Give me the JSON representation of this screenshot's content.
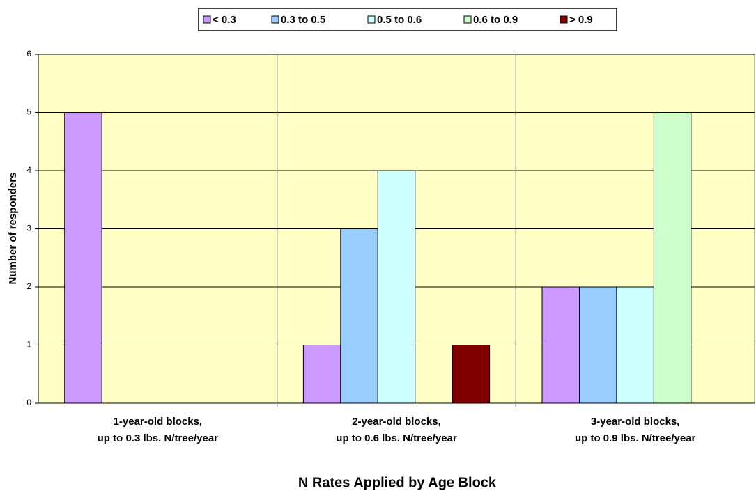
{
  "chart_data": {
    "type": "bar",
    "title": "N Rates Applied by Age Block",
    "y_label": "Number of responders",
    "categories": [
      [
        "1-year-old blocks,",
        "up to 0.3 lbs. N/tree/year"
      ],
      [
        "2-year-old blocks,",
        "up to 0.6 lbs. N/tree/year"
      ],
      [
        "3-year-old blocks,",
        "up to 0.9 lbs. N/tree/year"
      ]
    ],
    "series": [
      {
        "name": "< 0.3",
        "color": "#cc99ff",
        "values": [
          5,
          1,
          2
        ]
      },
      {
        "name": "0.3 to 0.5",
        "color": "#99ccff",
        "values": [
          0,
          3,
          2
        ]
      },
      {
        "name": "0.5 to 0.6",
        "color": "#ccffff",
        "values": [
          0,
          4,
          2
        ]
      },
      {
        "name": "0.6 to 0.9",
        "color": "#ccffcc",
        "values": [
          0,
          0,
          5
        ]
      },
      {
        "name": "> 0.9",
        "color": "#800000",
        "values": [
          0,
          1,
          0
        ]
      }
    ],
    "ylim": [
      0,
      6
    ],
    "yticks": [
      0,
      1,
      2,
      3,
      4,
      5,
      6
    ],
    "grid": true,
    "legend": "top",
    "plot_background": "#ffffc6"
  }
}
